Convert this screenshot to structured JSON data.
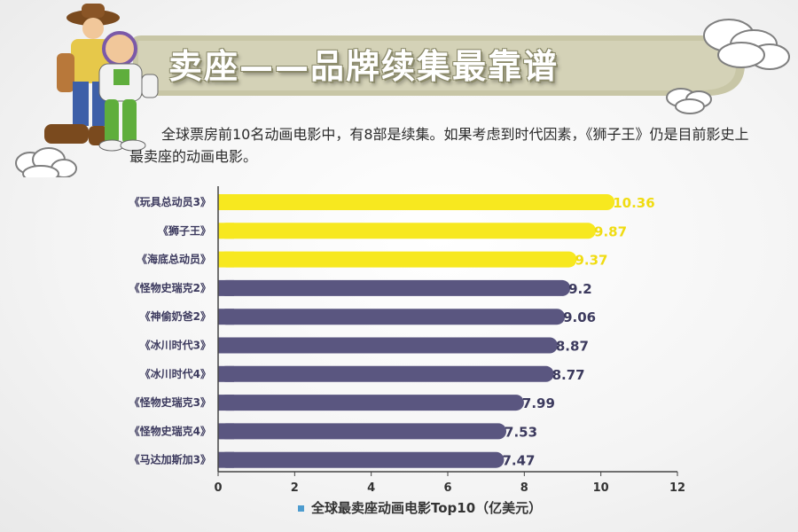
{
  "header": {
    "title": "卖座——品牌续集最靠谱",
    "subtitle": "全球票房前10名动画电影中，有8部是续集。如果考虑到时代因素，《狮子王》仍是目前影史上最卖座的动画电影。"
  },
  "colors": {
    "highlight": "#f7e81f",
    "default": "#5a5680",
    "banner": "#c8c6a6"
  },
  "chart_data": {
    "type": "bar",
    "orientation": "horizontal",
    "categories": [
      "《玩具总动员3》",
      "《狮子王》",
      "《海底总动员》",
      "《怪物史瑞克2》",
      "《神偷奶爸2》",
      "《冰川时代3》",
      "《冰川时代4》",
      "《怪物史瑞克3》",
      "《怪物史瑞克4》",
      "《马达加斯加3》"
    ],
    "values": [
      10.36,
      9.87,
      9.37,
      9.2,
      9.06,
      8.87,
      8.77,
      7.99,
      7.53,
      7.47
    ],
    "value_labels": [
      "10.36",
      "9.87",
      "9.37",
      "9.2",
      "9.06",
      "8.87",
      "8.77",
      "7.99",
      "7.53",
      "7.47"
    ],
    "highlighted": [
      true,
      true,
      true,
      false,
      false,
      false,
      false,
      false,
      false,
      false
    ],
    "xlim": [
      0,
      12
    ],
    "xticks": [
      0,
      2,
      4,
      6,
      8,
      10,
      12
    ],
    "legend": "全球最卖座动画电影Top10（亿美元）",
    "legend_position": "bottom",
    "grid": false
  }
}
